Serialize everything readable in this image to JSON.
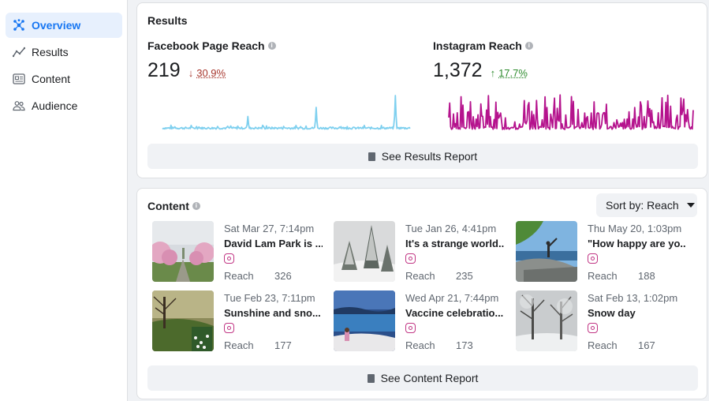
{
  "sidebar": {
    "items": [
      {
        "label": "Overview",
        "icon": "overview-icon",
        "active": true
      },
      {
        "label": "Results",
        "icon": "trend-line-icon",
        "active": false
      },
      {
        "label": "Content",
        "icon": "content-icon",
        "active": false
      },
      {
        "label": "Audience",
        "icon": "people-icon",
        "active": false
      }
    ]
  },
  "results": {
    "title": "Results",
    "facebook": {
      "label": "Facebook Page Reach",
      "value": "219",
      "change": "30.9%",
      "direction": "down",
      "color": "#7fd0ef"
    },
    "instagram": {
      "label": "Instagram Reach",
      "value": "1,372",
      "change": "17.7%",
      "direction": "up",
      "color": "#b5138d"
    },
    "button_label": "See Results Report"
  },
  "content": {
    "title": "Content",
    "sort_label": "Sort by: Reach",
    "button_label": "See Content Report",
    "posts": [
      {
        "date": "Sat Mar 27, 7:14pm",
        "title": "David Lam Park is ...",
        "reach_label": "Reach",
        "reach": "326",
        "platform": "instagram-icon"
      },
      {
        "date": "Tue Jan 26, 4:41pm",
        "title": "It's a strange world...",
        "reach_label": "Reach",
        "reach": "235",
        "platform": "instagram-icon"
      },
      {
        "date": "Thu May 20, 1:03pm",
        "title": "\"How happy are yo...",
        "reach_label": "Reach",
        "reach": "188",
        "platform": "instagram-icon"
      },
      {
        "date": "Tue Feb 23, 7:11pm",
        "title": "Sunshine and sno...",
        "reach_label": "Reach",
        "reach": "177",
        "platform": "instagram-icon"
      },
      {
        "date": "Wed Apr 21, 7:44pm",
        "title": "Vaccine celebratio...",
        "reach_label": "Reach",
        "reach": "173",
        "platform": "instagram-icon"
      },
      {
        "date": "Sat Feb 13, 1:02pm",
        "title": "Snow day",
        "reach_label": "Reach",
        "reach": "167",
        "platform": "instagram-icon"
      }
    ]
  }
}
